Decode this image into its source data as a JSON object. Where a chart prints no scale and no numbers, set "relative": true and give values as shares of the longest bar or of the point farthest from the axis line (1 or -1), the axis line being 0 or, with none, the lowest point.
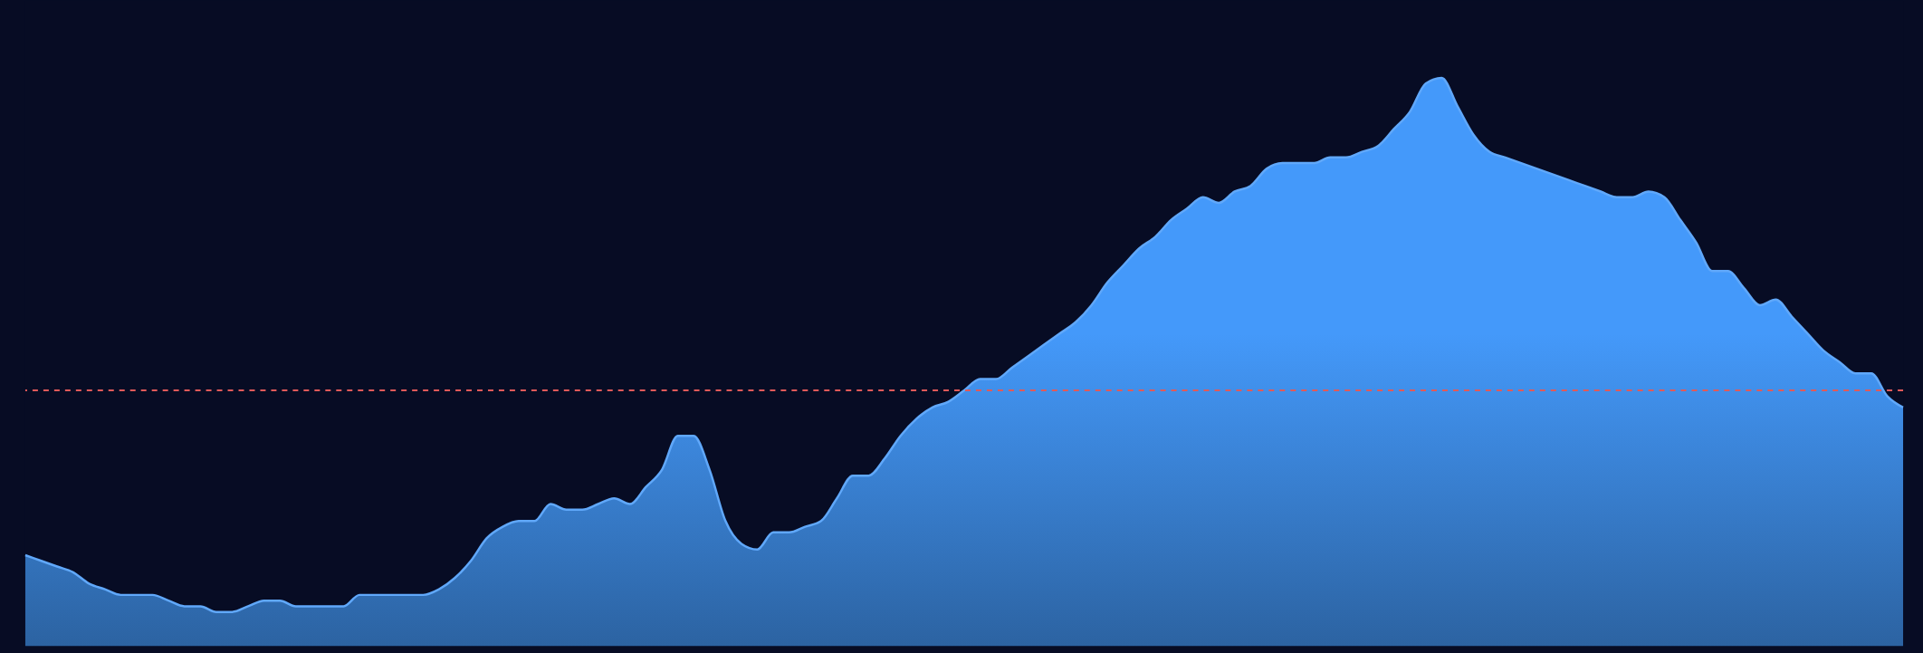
{
  "chart_data": {
    "type": "area",
    "relative": true,
    "categories": [
      null,
      null,
      null,
      null,
      null,
      null,
      null,
      null,
      null,
      null,
      null,
      null,
      null,
      null,
      null,
      null,
      null,
      null,
      null,
      null,
      null,
      null,
      null,
      null,
      null,
      null,
      null,
      null,
      null,
      null,
      null,
      null,
      null,
      null,
      null,
      null,
      null,
      null,
      null,
      null,
      null,
      null,
      null,
      null,
      null,
      null,
      null,
      null,
      null,
      null,
      null,
      null,
      null,
      null,
      null,
      null,
      null,
      null,
      null,
      null,
      null,
      null,
      null,
      null,
      null,
      null,
      null,
      null,
      null,
      null,
      null,
      null,
      null,
      null,
      null,
      null,
      null,
      null,
      null,
      null,
      null,
      null,
      null,
      null,
      null,
      null,
      null,
      null,
      null,
      null,
      null,
      null,
      null,
      null,
      null,
      null,
      null,
      null,
      null,
      null,
      null,
      null,
      null,
      null,
      null,
      null,
      null,
      null,
      null,
      null,
      null,
      null,
      null,
      null,
      null,
      null,
      null,
      null,
      null
    ],
    "series": [
      {
        "color": "#4499fa",
        "values": [
          0.16,
          0.15,
          0.14,
          0.13,
          0.11,
          0.1,
          0.09,
          0.09,
          0.09,
          0.08,
          0.07,
          0.07,
          0.06,
          0.06,
          0.07,
          0.08,
          0.08,
          0.07,
          0.07,
          0.07,
          0.07,
          0.09,
          0.09,
          0.09,
          0.09,
          0.09,
          0.1,
          0.12,
          0.15,
          0.19,
          0.21,
          0.22,
          0.22,
          0.25,
          0.24,
          0.24,
          0.25,
          0.26,
          0.25,
          0.28,
          0.31,
          0.37,
          0.37,
          0.31,
          0.22,
          0.18,
          0.17,
          0.2,
          0.2,
          0.21,
          0.22,
          0.26,
          0.3,
          0.3,
          0.33,
          0.37,
          0.4,
          0.42,
          0.43,
          0.45,
          0.47,
          0.47,
          0.49,
          0.51,
          0.53,
          0.55,
          0.57,
          0.6,
          0.64,
          0.67,
          0.7,
          0.72,
          0.75,
          0.77,
          0.79,
          0.78,
          0.8,
          0.81,
          0.84,
          0.85,
          0.85,
          0.85,
          0.86,
          0.86,
          0.87,
          0.88,
          0.91,
          0.94,
          0.99,
          1.0,
          0.95,
          0.9,
          0.87,
          0.86,
          0.85,
          0.84,
          0.83,
          0.82,
          0.81,
          0.8,
          0.79,
          0.79,
          0.8,
          0.79,
          0.75,
          0.71,
          0.66,
          0.66,
          0.63,
          0.6,
          0.61,
          0.58,
          0.55,
          0.52,
          0.5,
          0.48,
          0.48,
          0.44,
          0.42
        ]
      }
    ],
    "ref_lines": [
      {
        "axis": "y",
        "value": 0.45,
        "color": "#e05a5a",
        "line_style": "dashed"
      }
    ],
    "grid": false
  }
}
